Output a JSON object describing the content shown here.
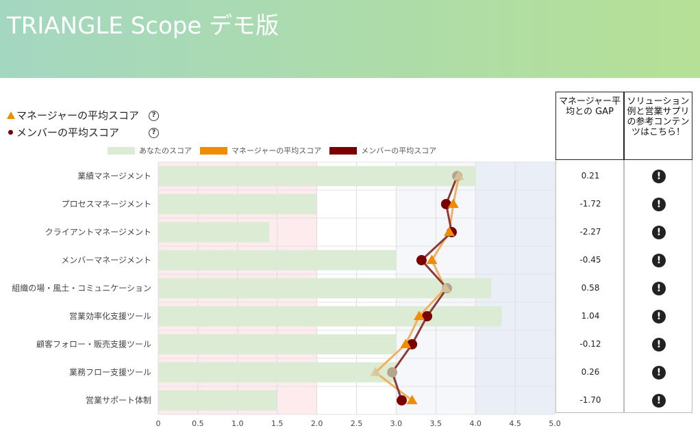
{
  "header": {
    "title": "TRIANGLE Scope デモ版"
  },
  "legend_top": {
    "manager": "マネージャーの平均スコア",
    "member": "メンバーの平均スコア",
    "help": "?"
  },
  "columns": {
    "gap_header": "マネージャー平均との GAP",
    "solution_header": "ソリューション例と営業サプリの参考コンテンツはこちら！",
    "solution_icon": "!"
  },
  "colors": {
    "your_score": "#dcebd3",
    "manager": "#f08c00",
    "member": "#7a0000",
    "manager_line": "#f0b060",
    "member_line": "#8b3a3a",
    "low_zone": "#fdebee",
    "high_zone": "#eaeff7",
    "mid_zone": "#f6f7fb"
  },
  "chart_data": {
    "type": "bar",
    "orientation": "horizontal",
    "categories": [
      "業績マネージメント",
      "プロセスマネージメント",
      "クライアントマネージメント",
      "メンバーマネージメント",
      "組織の場・風土・コミュニケーション",
      "営業効率化支援ツール",
      "顧客フォロー・販売支援ツール",
      "業務フロー支援ツール",
      "営業サポート体制"
    ],
    "series": [
      {
        "name": "あなたのスコア",
        "type": "bar",
        "values": [
          4.0,
          2.0,
          1.4,
          3.0,
          4.2,
          4.33,
          3.0,
          3.0,
          1.5
        ]
      },
      {
        "name": "マネージャーの平均スコア",
        "type": "line",
        "marker": "triangle",
        "values": [
          3.79,
          3.72,
          3.67,
          3.45,
          3.62,
          3.29,
          3.12,
          2.74,
          3.2
        ]
      },
      {
        "name": "メンバーの平均スコア",
        "type": "line",
        "marker": "circle",
        "values": [
          3.77,
          3.63,
          3.7,
          3.32,
          3.64,
          3.39,
          3.2,
          2.95,
          3.07
        ]
      }
    ],
    "gap": [
      "0.21",
      "-1.72",
      "-2.27",
      "-0.45",
      "0.58",
      "1.04",
      "-0.12",
      "0.26",
      "-1.70"
    ],
    "xlim": [
      0,
      5
    ],
    "xticks": [
      "0",
      "0.5",
      "1.0",
      "1.5",
      "2.0",
      "2.5",
      "3.0",
      "3.5",
      "4.0",
      "4.5",
      "5.0"
    ],
    "grid": true,
    "legend_position": "top"
  }
}
